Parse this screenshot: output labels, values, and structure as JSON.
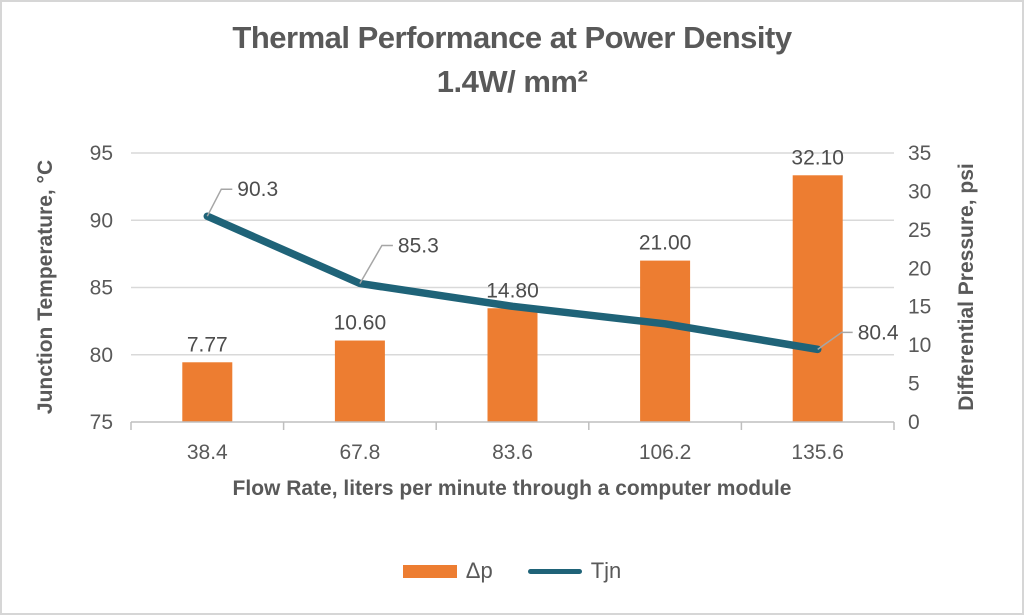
{
  "chart_data": {
    "type": "bar",
    "combo": true,
    "title_line1": "Thermal Performance at Power Density",
    "title_line2": "1.4W/ mm²",
    "categories": [
      "38.4",
      "67.8",
      "83.6",
      "106.2",
      "135.6"
    ],
    "xlabel": "Flow Rate, liters per minute through a computer module",
    "ylabel_left": "Junction Temperature, °C",
    "ylabel_right": "Differential Pressure, psi",
    "axis_left": {
      "min": 75,
      "max": 95,
      "ticks": [
        75,
        80,
        85,
        90,
        95
      ]
    },
    "axis_right": {
      "min": 0,
      "max": 35,
      "ticks": [
        0,
        5,
        10,
        15,
        20,
        25,
        30,
        35
      ]
    },
    "grid": "horizontal",
    "legend_position": "bottom",
    "series": [
      {
        "name": "Δp",
        "type": "bar",
        "axis": "right",
        "color": "#ED7D31",
        "values": [
          7.77,
          10.6,
          14.8,
          21.0,
          32.1
        ],
        "labels": [
          "7.77",
          "10.60",
          "14.80",
          "21.00",
          "32.10"
        ]
      },
      {
        "name": "Tjn",
        "type": "line",
        "axis": "left",
        "color": "#1F6378",
        "values": [
          90.3,
          85.3,
          83.6,
          82.3,
          80.4
        ],
        "labels": [
          "90.3",
          "85.3",
          null,
          null,
          "80.4"
        ]
      }
    ],
    "colors": {
      "bar": "#ED7D31",
      "line": "#1F6378",
      "gridline": "#D9D9D9",
      "axis_line": "#BFBFBF",
      "tick_label": "#595959",
      "data_label": "#4D4D4D",
      "leader_line": "#A6A6A6",
      "title": "#595959",
      "border": "#D6D6D6"
    }
  }
}
